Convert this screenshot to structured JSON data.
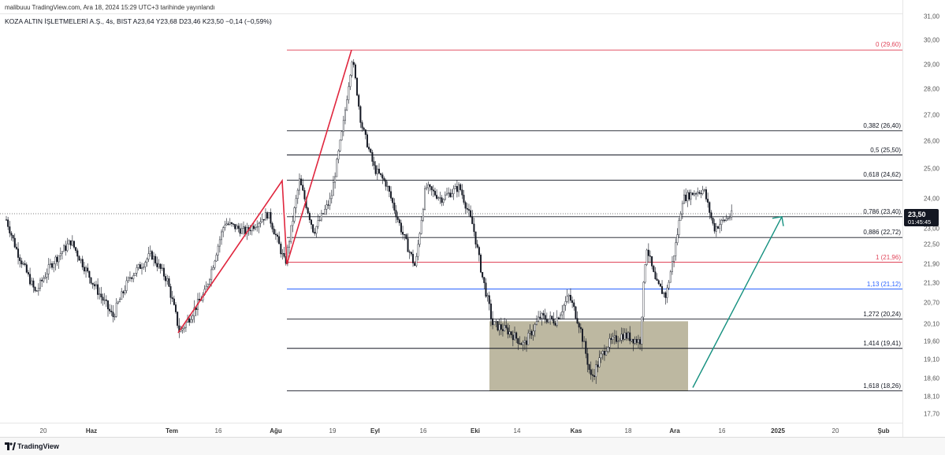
{
  "header": {
    "publish_line": "malibuuu TradingView.com, Ara 18, 2024 15:29 UTC+3 tarihinde yayınlandı",
    "symbol_line": "KOZA ALTIN İŞLETMELERİ A.Ş., 4s, BIST  A23,64  Y23,68  D23,46  K23,50  −0,14 (−0,59%)"
  },
  "price_axis": {
    "ticks": [
      "31,00",
      "30,00",
      "29,00",
      "28,00",
      "27,00",
      "26,00",
      "25,00",
      "24,00",
      "23,00",
      "22,50",
      "21,90",
      "21,30",
      "20,70",
      "20,10",
      "19,60",
      "19,10",
      "18,60",
      "18,10",
      "17,70"
    ],
    "current_price": "23,50",
    "countdown": "01:45:45"
  },
  "time_axis": {
    "labels": [
      "20",
      "Haz",
      "Tem",
      "16",
      "Ağu",
      "19",
      "Eyl",
      "16",
      "Eki",
      "14",
      "Kas",
      "18",
      "Ara",
      "16",
      "2025",
      "20",
      "Şub"
    ]
  },
  "fib_levels": [
    {
      "label": "0 (29,60)",
      "price": 29.6,
      "color": "#e0455a"
    },
    {
      "label": "0,382 (26,40)",
      "price": 26.4,
      "color": "#131722"
    },
    {
      "label": "0,5 (25,50)",
      "price": 25.5,
      "color": "#131722"
    },
    {
      "label": "0,618 (24,62)",
      "price": 24.62,
      "color": "#131722"
    },
    {
      "label": "0,786 (23,40)",
      "price": 23.4,
      "color": "#131722"
    },
    {
      "label": "0,886 (22,72)",
      "price": 22.72,
      "color": "#131722"
    },
    {
      "label": "1 (21,96)",
      "price": 21.96,
      "color": "#e0455a"
    },
    {
      "label": "1,13 (21,12)",
      "price": 21.12,
      "color": "#2962ff"
    },
    {
      "label": "1,272 (20,24)",
      "price": 20.24,
      "color": "#131722"
    },
    {
      "label": "1,414 (19,41)",
      "price": 19.41,
      "color": "#131722"
    },
    {
      "label": "1,618 (18,26)",
      "price": 18.26,
      "color": "#131722"
    }
  ],
  "footer": {
    "brand": "TradingView"
  },
  "colors": {
    "up": "#ffffff",
    "down": "#131722",
    "zigzag": "#e0263e",
    "arrow": "#14907f",
    "zone": "#b9b49c"
  }
}
